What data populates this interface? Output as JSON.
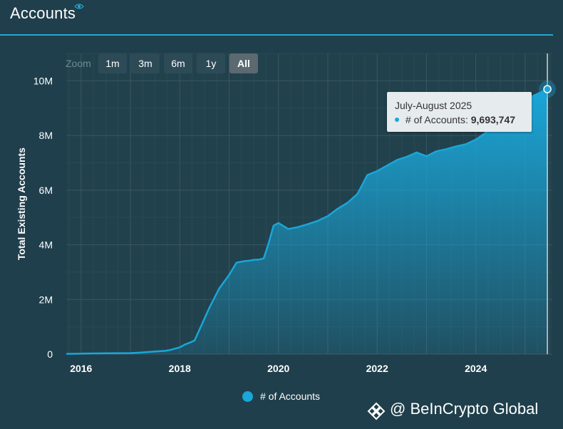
{
  "header": {
    "title": "Accounts"
  },
  "zoom": {
    "label": "Zoom",
    "buttons": [
      {
        "label": "1m",
        "active": false
      },
      {
        "label": "3m",
        "active": false
      },
      {
        "label": "6m",
        "active": false
      },
      {
        "label": "1y",
        "active": false
      },
      {
        "label": "All",
        "active": true
      }
    ]
  },
  "tooltip": {
    "date": "July-August 2025",
    "series": "# of Accounts:",
    "value": "9,693,747"
  },
  "legend": {
    "label": "# of Accounts"
  },
  "watermark": {
    "text": "@ BeInCrypto Global",
    "icon": "binance-diamond-icon"
  },
  "colors": {
    "background": "#1f3f4c",
    "accent": "#1aa6d8",
    "grid": "#35525c"
  },
  "chart_data": {
    "type": "area",
    "ylabel": "Total Existing Accounts",
    "xlabel": "",
    "xlim": [
      2015.7,
      2025.55
    ],
    "ylim": [
      0,
      11000000
    ],
    "yticks": [
      {
        "value": 0,
        "label": "0"
      },
      {
        "value": 2000000,
        "label": "2M"
      },
      {
        "value": 4000000,
        "label": "4M"
      },
      {
        "value": 6000000,
        "label": "6M"
      },
      {
        "value": 8000000,
        "label": "8M"
      },
      {
        "value": 10000000,
        "label": "10M"
      }
    ],
    "xticks": [
      {
        "value": 2016,
        "label": "2016"
      },
      {
        "value": 2018,
        "label": "2018"
      },
      {
        "value": 2020,
        "label": "2020"
      },
      {
        "value": 2022,
        "label": "2022"
      },
      {
        "value": 2024,
        "label": "2024"
      }
    ],
    "grid": true,
    "series": [
      {
        "name": "# of Accounts",
        "x": [
          2015.7,
          2016.0,
          2016.5,
          2017.0,
          2017.2,
          2017.5,
          2017.7,
          2017.8,
          2018.0,
          2018.1,
          2018.2,
          2018.3,
          2018.5,
          2018.6,
          2018.8,
          2019.0,
          2019.15,
          2019.3,
          2019.4,
          2019.5,
          2019.6,
          2019.7,
          2019.8,
          2019.9,
          2020.0,
          2020.2,
          2020.4,
          2020.6,
          2020.8,
          2021.0,
          2021.2,
          2021.4,
          2021.6,
          2021.8,
          2022.0,
          2022.2,
          2022.4,
          2022.6,
          2022.8,
          2023.0,
          2023.2,
          2023.4,
          2023.6,
          2023.8,
          2024.0,
          2024.2,
          2024.4,
          2024.6,
          2024.8,
          2025.0,
          2025.2,
          2025.45
        ],
        "y": [
          10000,
          20000,
          30000,
          40000,
          60000,
          100000,
          120000,
          150000,
          250000,
          350000,
          420000,
          500000,
          1300000,
          1700000,
          2400000,
          2900000,
          3350000,
          3400000,
          3420000,
          3450000,
          3460000,
          3500000,
          4050000,
          4700000,
          4800000,
          4580000,
          4650000,
          4760000,
          4880000,
          5050000,
          5320000,
          5540000,
          5860000,
          6550000,
          6700000,
          6900000,
          7100000,
          7220000,
          7380000,
          7240000,
          7420000,
          7500000,
          7600000,
          7680000,
          7850000,
          8100000,
          8480000,
          8800000,
          9050000,
          9300000,
          9480000,
          9693747
        ]
      }
    ]
  }
}
